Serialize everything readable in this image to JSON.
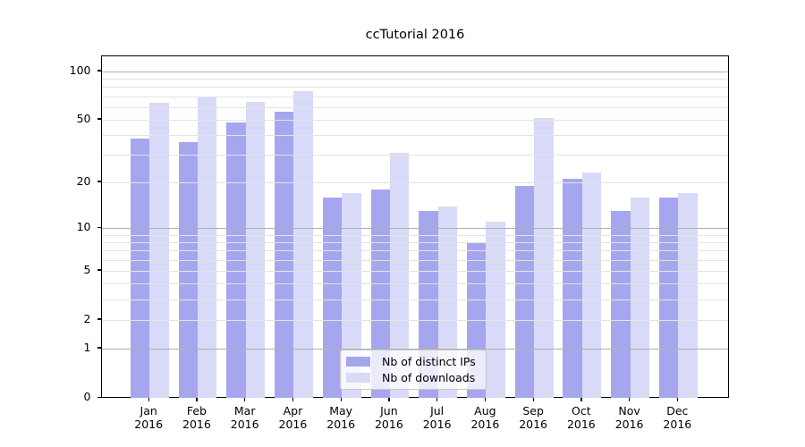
{
  "figure_title": "ccTutorial 2016",
  "chart_data": {
    "type": "bar",
    "title": "ccTutorial 2016",
    "categories": [
      "Jan",
      "Feb",
      "Mar",
      "Apr",
      "May",
      "Jun",
      "Jul",
      "Aug",
      "Sep",
      "Oct",
      "Nov",
      "Dec"
    ],
    "category_year_line": "2016",
    "series": [
      {
        "name": "Nb of distinct IPs",
        "color": "#a6a6ef",
        "values": [
          38,
          36,
          48,
          56,
          16,
          18,
          13,
          8,
          19,
          21,
          13,
          16
        ]
      },
      {
        "name": "Nb of downloads",
        "color": "#d9d9f8",
        "values": [
          64,
          69,
          65,
          75,
          17,
          31,
          14,
          11,
          51,
          23,
          16,
          17
        ]
      }
    ],
    "xlabel": "",
    "ylabel": "",
    "yscale": "symlog",
    "ylim": [
      0,
      120
    ],
    "yticks": [
      0,
      1,
      2,
      5,
      10,
      20,
      50,
      100
    ],
    "yticks_minor": [
      3,
      4,
      6,
      7,
      8,
      9,
      30,
      40,
      60,
      70,
      80,
      90
    ],
    "grid": "horizontal, major and minor, drawn over bars",
    "legend_position": "bottom-center-inside"
  },
  "legend": {
    "items": [
      {
        "label": "Nb of distinct IPs",
        "color": "#a6a6ef"
      },
      {
        "label": "Nb of downloads",
        "color": "#d9d9f8"
      }
    ]
  },
  "colors": {
    "background": "#ffffff",
    "bar_distinct_ips": "#a6a6ef",
    "bar_downloads": "#d9d9f8",
    "grid_major": "#b0b0b0",
    "grid_minor": "#e4e4e4",
    "axis": "#000000",
    "text": "#000000",
    "legend_border": "#c8c8c8"
  }
}
